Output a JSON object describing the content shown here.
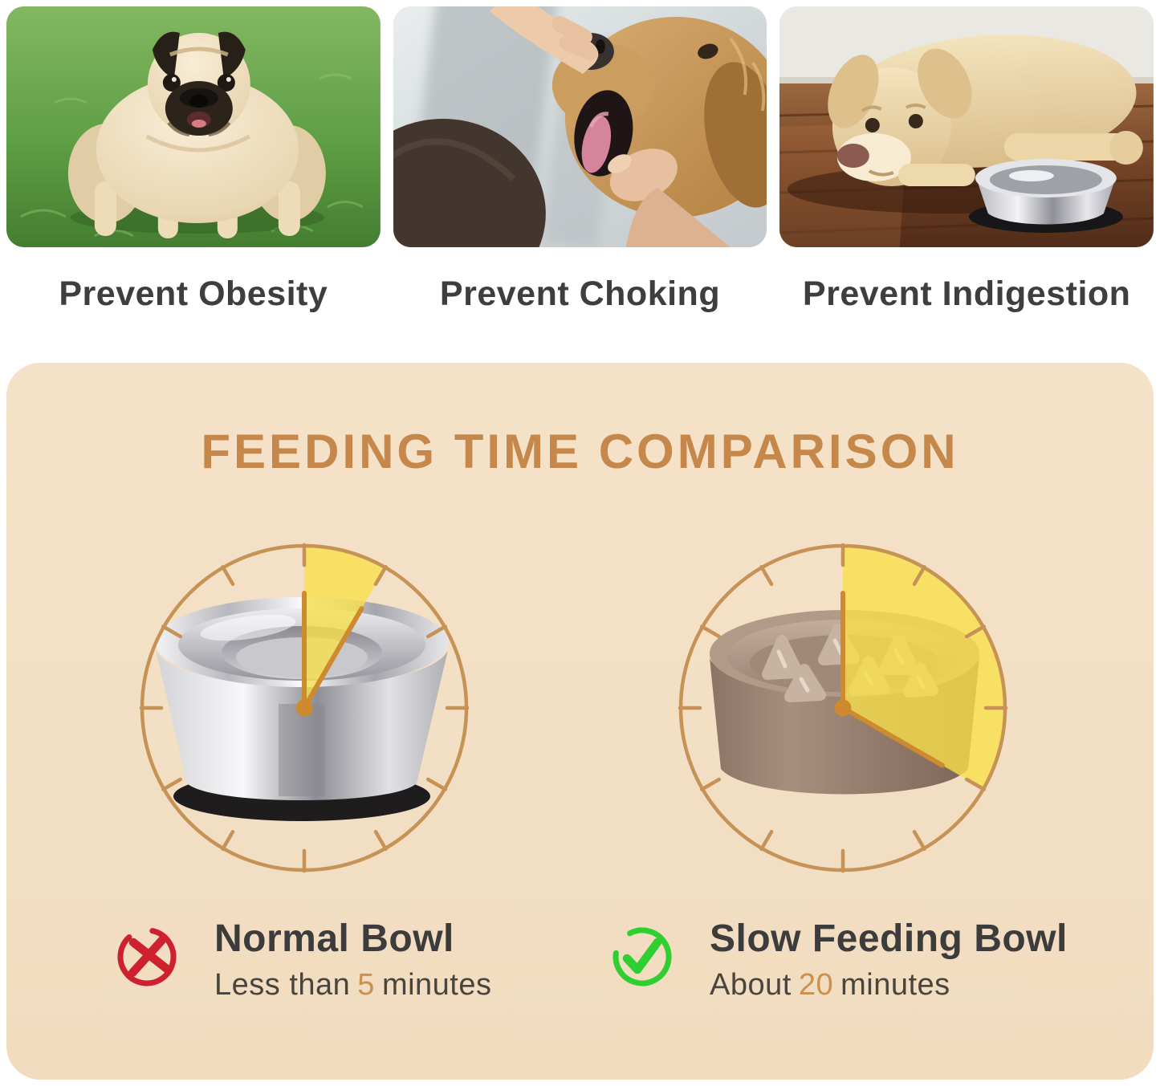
{
  "benefits": [
    {
      "label": "Prevent Obesity",
      "photo": "obese-pug-on-grass"
    },
    {
      "label": "Prevent Choking",
      "photo": "owner-checking-golden-retriever-mouth"
    },
    {
      "label": "Prevent Indigestion",
      "photo": "labrador-lying-beside-steel-bowl"
    }
  ],
  "comparison": {
    "title": "FEEDING TIME COMPARISON",
    "clock_minutes_total": 60,
    "items": [
      {
        "id": "normal",
        "name": "Normal Bowl",
        "verdict_icon": "cross-icon",
        "time_prefix": "Less than",
        "time_value": "5",
        "time_suffix": "minutes",
        "minutes": 5
      },
      {
        "id": "slow",
        "name": "Slow Feeding Bowl",
        "verdict_icon": "check-icon",
        "time_prefix": "About",
        "time_value": "20",
        "time_suffix": "minutes",
        "minutes": 20
      }
    ]
  },
  "colors": {
    "panel_bg": "#f4e2c8",
    "accent": "#c6884a",
    "dial": "#c79255",
    "hand": "#cd8a2e",
    "wedge": "#f7e04b",
    "num": "#c9914f",
    "text_dark": "#3c3c3c",
    "negative": "#ce2130",
    "positive": "#2fce31"
  }
}
